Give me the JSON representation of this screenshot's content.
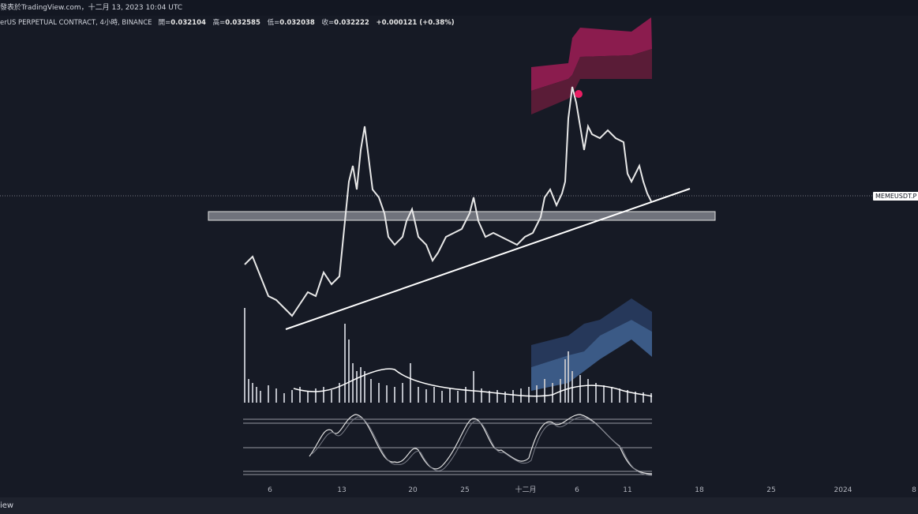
{
  "header": {
    "published": "發表於TradingView.com",
    "date": "十二月 13, 2023 10:04 UTC"
  },
  "legend": {
    "symbol": "erUS PERPETUAL CONTRACT, 4小時, BINANCE",
    "open_label": "開=",
    "open": "0.032104",
    "high_label": "高=",
    "high": "0.032585",
    "low_label": "低=",
    "low": "0.032038",
    "close_label": "收=",
    "close": "0.032222",
    "change": "+0.000121 (+0.38%)"
  },
  "price_tag": "MEMEUSDT.P",
  "time_axis": [
    "6",
    "13",
    "20",
    "25",
    "十二月",
    "6",
    "11",
    "18",
    "25",
    "2024",
    "8"
  ],
  "footer": "iew"
}
